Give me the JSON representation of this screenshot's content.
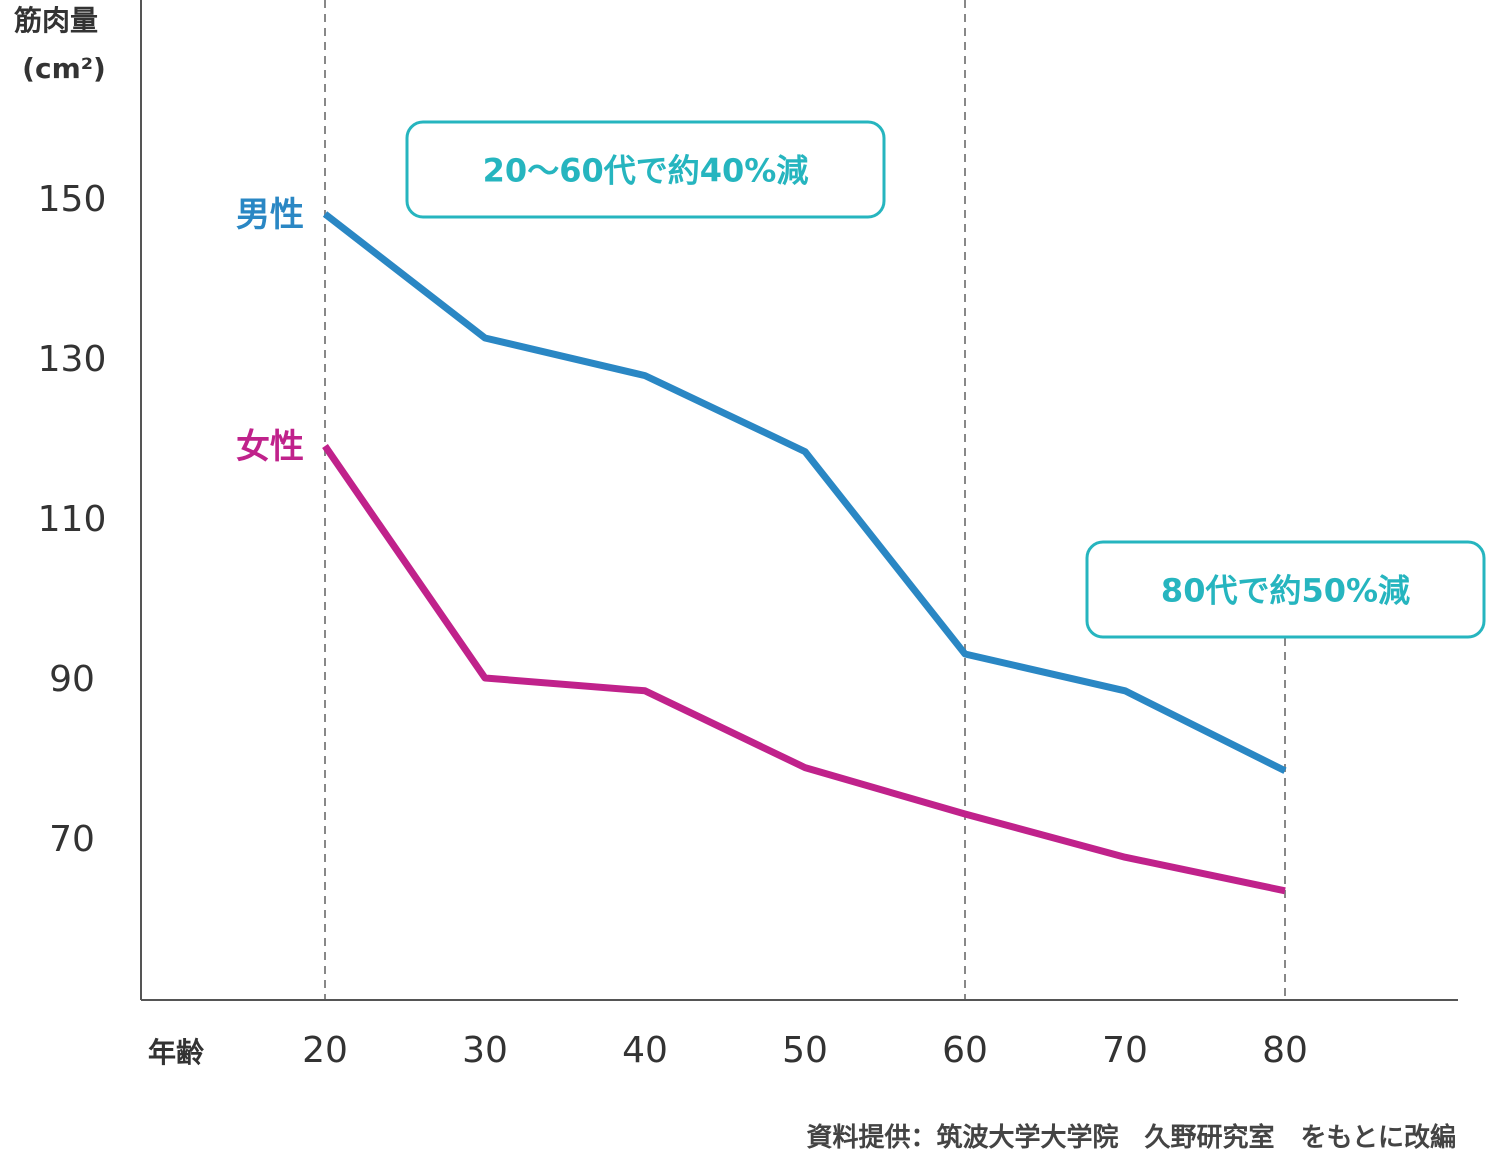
{
  "chart_data": {
    "type": "line",
    "title": "",
    "ylabel_line1": "筋肉量",
    "ylabel_line2": "(cm²)",
    "xlabel": "年齢",
    "x": [
      20,
      30,
      40,
      50,
      60,
      70,
      80
    ],
    "x_ticks": [
      "20",
      "30",
      "40",
      "50",
      "60",
      "70",
      "80"
    ],
    "y_ticks": [
      "150",
      "130",
      "110",
      "90",
      "70"
    ],
    "y_tick_values": [
      150,
      130,
      110,
      90,
      70
    ],
    "xlim": [
      8.5,
      91
    ],
    "ylim": [
      50,
      175
    ],
    "grid": false,
    "dashed_reference_x": [
      20,
      60,
      80
    ],
    "series": [
      {
        "name": "男性",
        "color": "#2a87c4",
        "values": [
          148,
          132.5,
          127.8,
          118.3,
          93,
          88.4,
          78.4
        ]
      },
      {
        "name": "女性",
        "color": "#c0228b",
        "values": [
          119,
          90,
          88.4,
          78.8,
          73,
          67.6,
          63.4
        ]
      }
    ],
    "annotations": [
      {
        "text": "20〜60代で約40%減",
        "color": "#26b5bf"
      },
      {
        "text": "80代で約50%減",
        "color": "#26b5bf"
      }
    ],
    "source": "資料提供：筑波大学大学院　久野研究室　をもとに改編"
  }
}
